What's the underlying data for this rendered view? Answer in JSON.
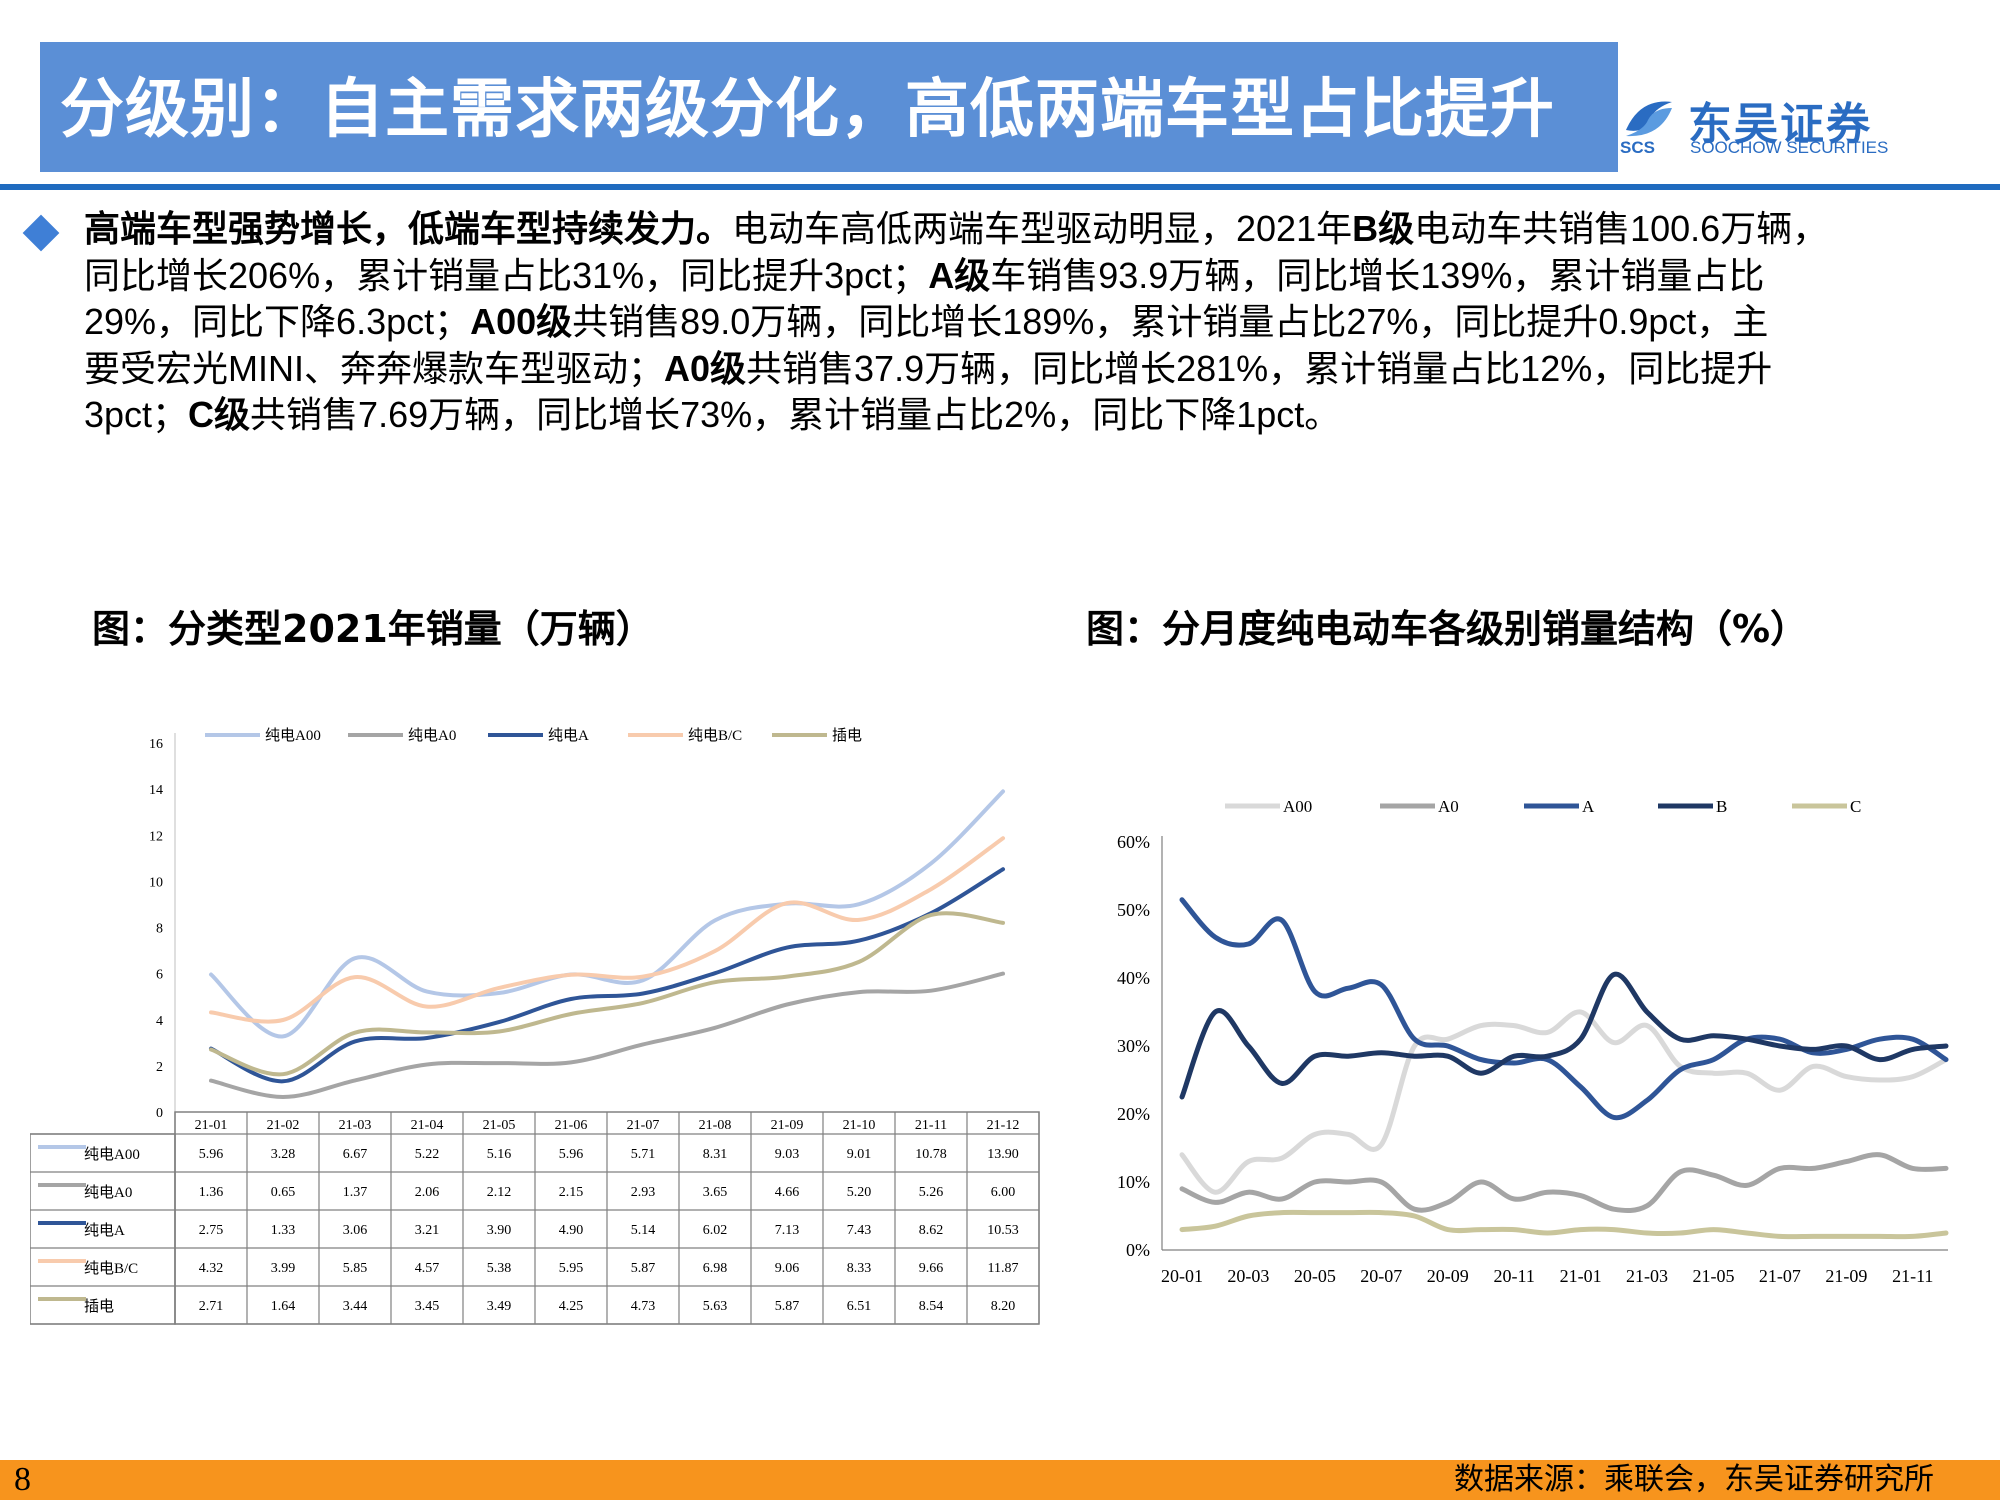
{
  "header": {
    "title": "分级别：自主需求两级分化，高低两端车型占比提升",
    "logo_cn": "东吴证券",
    "logo_en": "SOOCHOW SECURITIES",
    "logo_abbr": "SCS"
  },
  "body": {
    "lines": [
      [
        {
          "t": "高端车型强势增长，低端车型持续发力。",
          "b": true
        },
        {
          "t": "电动车高低两端车型驱动明显，2021年"
        },
        {
          "t": "B级",
          "b": true
        },
        {
          "t": "电动车共销售100.6万辆，"
        }
      ],
      [
        {
          "t": "同比增长206%，累计销量占比31%，同比提升3pct；"
        },
        {
          "t": "A级",
          "b": true
        },
        {
          "t": "车销售93.9万辆，同比增长139%，累计销量占比"
        }
      ],
      [
        {
          "t": "29%，同比下降6.3pct；"
        },
        {
          "t": "A00级",
          "b": true
        },
        {
          "t": "共销售89.0万辆，同比增长189%，累计销量占比27%，同比提升0.9pct，主"
        }
      ],
      [
        {
          "t": "要受宏光MINI、奔奔爆款车型驱动；"
        },
        {
          "t": "A0级",
          "b": true
        },
        {
          "t": "共销售37.9万辆，同比增长281%，累计销量占比12%，同比提升"
        }
      ],
      [
        {
          "t": "3pct；"
        },
        {
          "t": "C级",
          "b": true
        },
        {
          "t": "共销售7.69万辆，同比增长73%，累计销量占比2%，同比下降1pct。"
        }
      ]
    ]
  },
  "chart_left_title": "图：分类型2021年销量（万辆）",
  "chart_right_title": "图：分月度纯电动车各级别销量结构（%）",
  "footer": {
    "page": "8",
    "source": "数据来源：乘联会，东吴证券研究所"
  },
  "chart_data": [
    {
      "type": "line",
      "categories": [
        "21-01",
        "21-02",
        "21-03",
        "21-04",
        "21-05",
        "21-06",
        "21-07",
        "21-08",
        "21-09",
        "21-10",
        "21-11",
        "21-12"
      ],
      "ylim": [
        0,
        16
      ],
      "yticks": [
        0,
        2,
        4,
        6,
        8,
        10,
        12,
        14,
        16
      ],
      "legend_position": "top",
      "table_below": true,
      "series": [
        {
          "name": "纯电A00",
          "color": "#b4c7e7",
          "values": [
            5.96,
            3.28,
            6.67,
            5.22,
            5.16,
            5.96,
            5.71,
            8.31,
            9.03,
            9.01,
            10.78,
            13.9
          ]
        },
        {
          "name": "纯电A0",
          "color": "#a5a5a5",
          "values": [
            1.36,
            0.65,
            1.37,
            2.06,
            2.12,
            2.15,
            2.93,
            3.65,
            4.66,
            5.2,
            5.26,
            6.0
          ]
        },
        {
          "name": "纯电A",
          "color": "#2f5597",
          "values": [
            2.75,
            1.33,
            3.06,
            3.21,
            3.9,
            4.9,
            5.14,
            6.02,
            7.13,
            7.43,
            8.62,
            10.53
          ]
        },
        {
          "name": "纯电B/C",
          "color": "#f8cbad",
          "values": [
            4.32,
            3.99,
            5.85,
            4.57,
            5.38,
            5.95,
            5.87,
            6.98,
            9.06,
            8.33,
            9.66,
            11.87
          ]
        },
        {
          "name": "插电",
          "color": "#bfb88f",
          "values": [
            2.71,
            1.64,
            3.44,
            3.45,
            3.49,
            4.25,
            4.73,
            5.63,
            5.87,
            6.51,
            8.54,
            8.2
          ]
        }
      ]
    },
    {
      "type": "line",
      "x": [
        "20-01",
        "20-02",
        "20-03",
        "20-04",
        "20-05",
        "20-06",
        "20-07",
        "20-08",
        "20-09",
        "20-10",
        "20-11",
        "20-12",
        "21-01",
        "21-02",
        "21-03",
        "21-04",
        "21-05",
        "21-06",
        "21-07",
        "21-08",
        "21-09",
        "21-10",
        "21-11",
        "21-12"
      ],
      "xtick_labels": [
        "20-01",
        "20-03",
        "20-05",
        "20-07",
        "20-09",
        "20-11",
        "21-01",
        "21-03",
        "21-05",
        "21-07",
        "21-09",
        "21-11"
      ],
      "ylim": [
        0,
        60
      ],
      "yticks": [
        "0%",
        "10%",
        "20%",
        "30%",
        "40%",
        "50%",
        "60%"
      ],
      "legend_position": "top",
      "series": [
        {
          "name": "A00",
          "color": "#d9d9d9",
          "values": [
            14,
            8.5,
            13,
            13.5,
            17,
            17,
            15.5,
            30,
            31,
            33,
            33,
            32,
            35,
            30.5,
            33,
            27,
            26,
            26,
            23.5,
            27,
            25.5,
            25,
            25.5,
            28
          ]
        },
        {
          "name": "A0",
          "color": "#a5a5a5",
          "values": [
            9,
            7,
            8.5,
            7.5,
            10,
            10,
            10,
            6,
            7,
            10,
            7.5,
            8.5,
            8,
            6,
            6.5,
            11.5,
            11,
            9.5,
            12,
            12,
            13,
            14,
            12,
            12
          ]
        },
        {
          "name": "A",
          "color": "#2f5597",
          "values": [
            51.5,
            46,
            45,
            48.5,
            38,
            38.5,
            39,
            31,
            30,
            28,
            27.5,
            28,
            24,
            19.5,
            22,
            26.5,
            28,
            31,
            31,
            29,
            29.5,
            31,
            31,
            28
          ]
        },
        {
          "name": "B",
          "color": "#1f3864",
          "values": [
            22.5,
            35,
            30,
            24.5,
            28.5,
            28.5,
            29,
            28.5,
            28.5,
            26,
            28.5,
            28.5,
            31,
            40.5,
            35,
            31,
            31.5,
            31,
            30,
            29.5,
            30,
            28,
            29.5,
            30
          ]
        },
        {
          "name": "C",
          "color": "#c9c59b",
          "values": [
            3,
            3.5,
            5,
            5.5,
            5.5,
            5.5,
            5.5,
            5,
            3,
            3,
            3,
            2.5,
            3,
            3,
            2.5,
            2.5,
            3,
            2.5,
            2,
            2,
            2,
            2,
            2,
            2.5
          ]
        }
      ]
    }
  ]
}
